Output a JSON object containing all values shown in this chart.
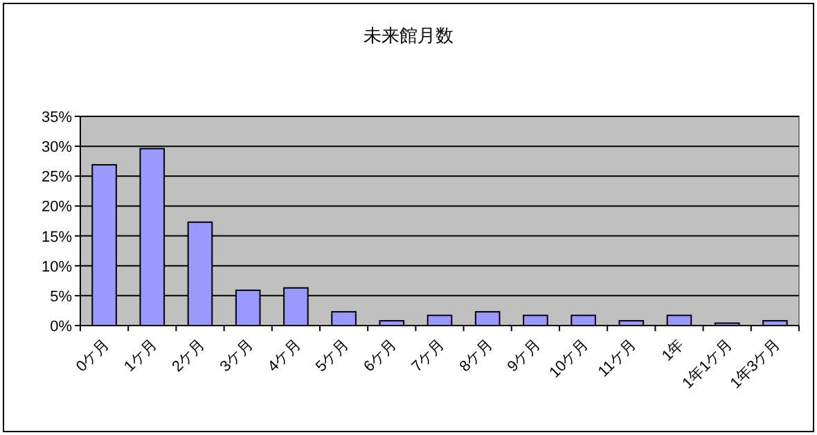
{
  "chart_data": {
    "type": "bar",
    "title": "未来館月数",
    "categories": [
      "0ケ月",
      "1ケ月",
      "2ケ月",
      "3ケ月",
      "4ケ月",
      "5ケ月",
      "6ケ月",
      "7ケ月",
      "8ケ月",
      "9ケ月",
      "10ケ月",
      "11ケ月",
      "1年",
      "1年1ケ月",
      "1年3ケ月"
    ],
    "values": [
      26.9,
      29.6,
      17.3,
      5.9,
      6.3,
      2.3,
      0.8,
      1.7,
      2.3,
      1.7,
      1.7,
      0.8,
      1.7,
      0.4,
      0.8
    ],
    "color": "#9999ff",
    "ylim": [
      0,
      35
    ],
    "yticks": [
      {
        "value": 0,
        "label": "0%"
      },
      {
        "value": 5,
        "label": "5%"
      },
      {
        "value": 10,
        "label": "10%"
      },
      {
        "value": 15,
        "label": "15%"
      },
      {
        "value": 20,
        "label": "20%"
      },
      {
        "value": 25,
        "label": "25%"
      },
      {
        "value": 30,
        "label": "30%"
      },
      {
        "value": 35,
        "label": "35%"
      }
    ],
    "grid": "y"
  }
}
